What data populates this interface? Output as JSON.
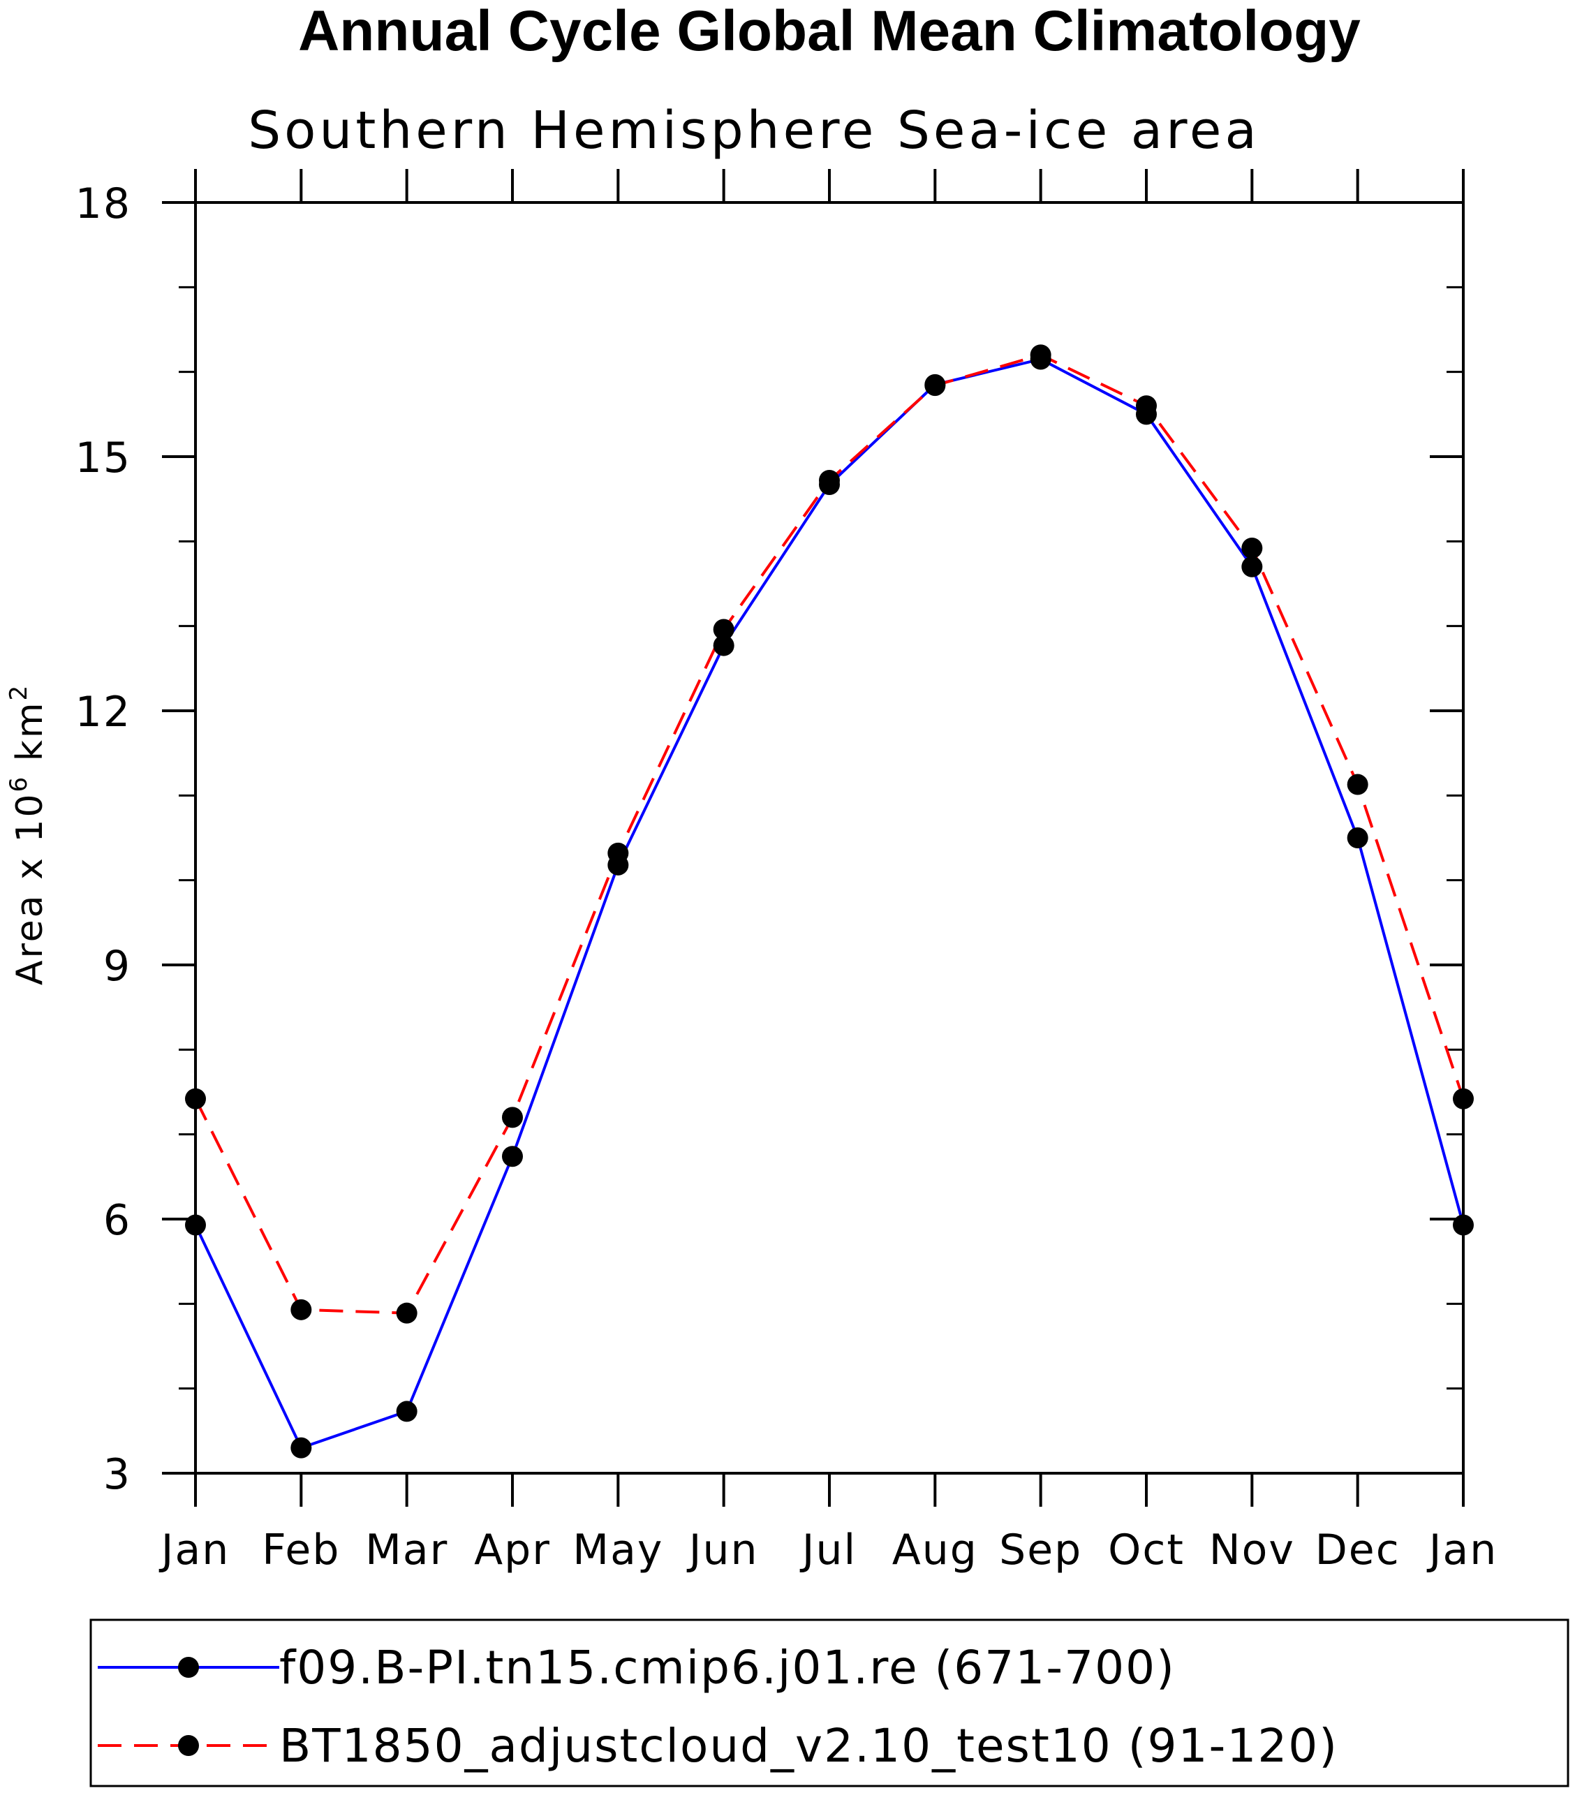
{
  "chart_data": {
    "type": "line",
    "title": "Annual Cycle Global Mean Climatology",
    "subtitle": "Southern Hemisphere Sea-ice area",
    "ylabel_parts": {
      "prefix": "Area x 10",
      "exp1": "6",
      "mid": " km",
      "exp2": "2"
    },
    "categories": [
      "Jan",
      "Feb",
      "Mar",
      "Apr",
      "May",
      "Jun",
      "Jul",
      "Aug",
      "Sep",
      "Oct",
      "Nov",
      "Dec",
      "Jan"
    ],
    "ylim": [
      3,
      18
    ],
    "yticks": [
      3,
      6,
      9,
      12,
      15,
      18
    ],
    "yticks_labels": [
      "3",
      "6",
      "9",
      "12",
      "15",
      "18"
    ],
    "y_minor_step": 1,
    "grid": false,
    "legend_position": "bottom",
    "series": [
      {
        "name": "f09.B-PI.tn15.cmip6.j01.re (671-700)",
        "color": "#0000ff",
        "dash": "solid",
        "values": [
          5.93,
          3.3,
          3.73,
          6.74,
          10.18,
          12.77,
          14.67,
          15.85,
          16.15,
          15.5,
          13.7,
          10.5,
          5.93
        ]
      },
      {
        "name": "BT1850_adjustcloud_v2.10_test10 (91-120)",
        "color": "#ff0000",
        "dash": "dashed",
        "values": [
          7.42,
          4.93,
          4.89,
          7.2,
          10.32,
          12.96,
          14.72,
          15.84,
          16.2,
          15.6,
          13.92,
          11.13,
          7.42
        ]
      }
    ]
  }
}
